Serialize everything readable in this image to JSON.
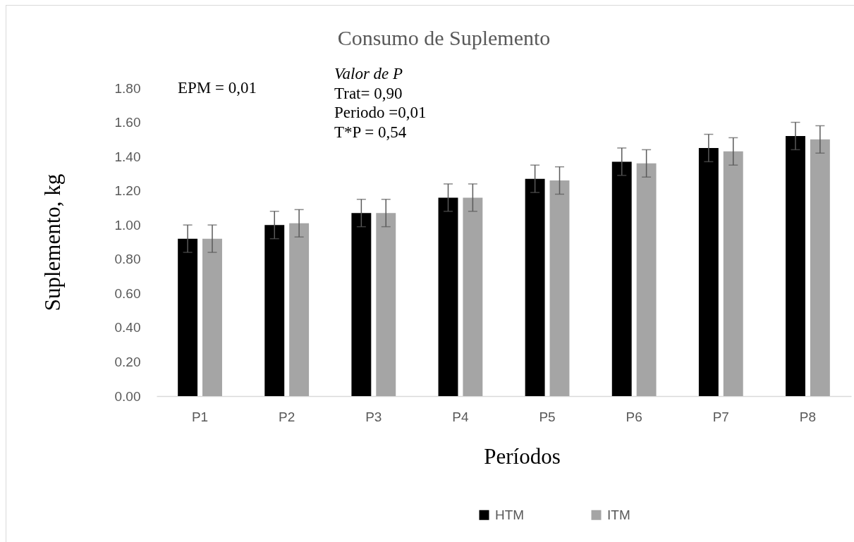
{
  "chart_data": {
    "type": "bar",
    "title": "Consumo de Suplemento",
    "xlabel": "Períodos",
    "ylabel": "Suplemento, kg",
    "annotations": [
      "EPM = 0,01",
      "Valor de P",
      "Trat= 0,90",
      "Periodo =0,01",
      "T*P = 0,54"
    ],
    "categories": [
      "P1",
      "P2",
      "P3",
      "P4",
      "P5",
      "P6",
      "P7",
      "P8"
    ],
    "series": [
      {
        "name": "HTM",
        "color": "#000000",
        "values": [
          0.92,
          1.0,
          1.07,
          1.16,
          1.27,
          1.37,
          1.45,
          1.52
        ],
        "errors": [
          0.08,
          0.08,
          0.08,
          0.08,
          0.08,
          0.08,
          0.08,
          0.08
        ]
      },
      {
        "name": "ITM",
        "color": "#a5a5a5",
        "values": [
          0.92,
          1.01,
          1.07,
          1.16,
          1.26,
          1.36,
          1.43,
          1.5
        ],
        "errors": [
          0.08,
          0.08,
          0.08,
          0.08,
          0.08,
          0.08,
          0.08,
          0.08
        ]
      }
    ],
    "ylim": [
      0,
      1.8
    ],
    "yticks": [
      {
        "value": 0,
        "label": "0.00"
      },
      {
        "value": 0.2,
        "label": "0.20"
      },
      {
        "value": 0.4,
        "label": "0.40"
      },
      {
        "value": 0.6,
        "label": "0.60"
      },
      {
        "value": 0.8,
        "label": "0.80"
      },
      {
        "value": 1,
        "label": "1.00"
      },
      {
        "value": 1.2,
        "label": "1.20"
      },
      {
        "value": 1.4,
        "label": "1.40"
      },
      {
        "value": 1.6,
        "label": "1.60"
      },
      {
        "value": 1.8,
        "label": "1.80"
      }
    ],
    "grid": false,
    "legend": "bottom"
  }
}
